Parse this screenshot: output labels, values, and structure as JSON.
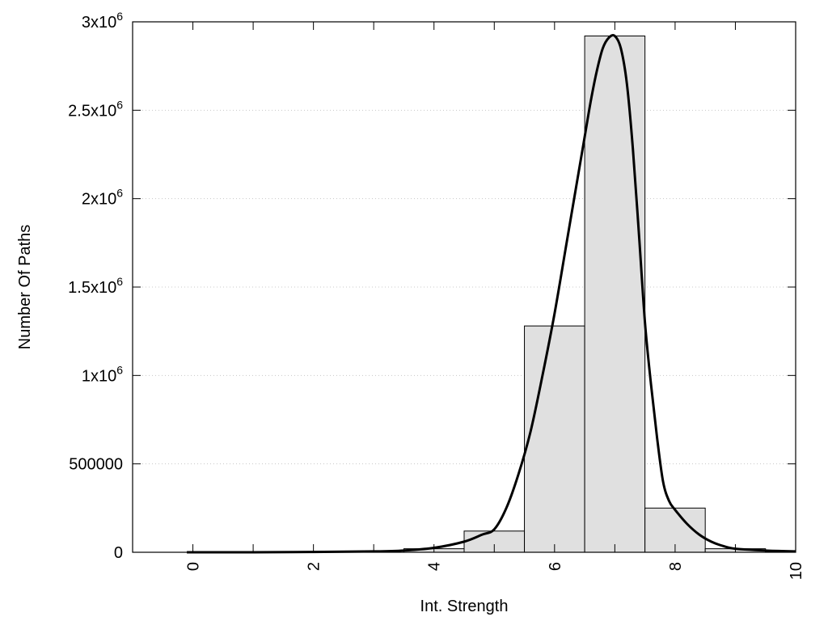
{
  "chart_data": {
    "type": "bar",
    "xlabel": "Int. Strength",
    "ylabel": "Number Of Paths",
    "xlim": [
      -1,
      10
    ],
    "ylim": [
      0,
      3000000
    ],
    "grid": true,
    "bar_color": "#e0e0e0",
    "x": [
      0,
      1,
      2,
      3,
      4,
      5,
      6,
      7,
      8,
      9,
      10
    ],
    "values": [
      0,
      0,
      0,
      0,
      20000,
      120000,
      1280000,
      2920000,
      250000,
      20000,
      5000
    ],
    "curve": {
      "x": [
        -0.1,
        1,
        2,
        3,
        3.5,
        4,
        4.5,
        4.8,
        5,
        5.2,
        5.4,
        5.6,
        5.8,
        6,
        6.2,
        6.4,
        6.5,
        6.6,
        6.7,
        6.8,
        6.9,
        7,
        7.1,
        7.2,
        7.3,
        7.4,
        7.5,
        7.6,
        7.7,
        7.8,
        7.9,
        8,
        8.2,
        8.4,
        8.6,
        8.8,
        9,
        9.5,
        10
      ],
      "y": [
        0,
        0,
        2000,
        5000,
        10000,
        25000,
        60000,
        100000,
        130000,
        250000,
        440000,
        680000,
        1000000,
        1350000,
        1750000,
        2150000,
        2350000,
        2550000,
        2720000,
        2850000,
        2910000,
        2920000,
        2850000,
        2650000,
        2280000,
        1800000,
        1300000,
        950000,
        650000,
        400000,
        290000,
        240000,
        160000,
        100000,
        60000,
        35000,
        20000,
        10000,
        5000
      ]
    },
    "y_ticks": [
      {
        "value": 0,
        "base": "0",
        "exp": ""
      },
      {
        "value": 500000,
        "base": "500000",
        "exp": ""
      },
      {
        "value": 1000000,
        "base": "1x10",
        "exp": "6"
      },
      {
        "value": 1500000,
        "base": "1.5x10",
        "exp": "6"
      },
      {
        "value": 2000000,
        "base": "2x10",
        "exp": "6"
      },
      {
        "value": 2500000,
        "base": "2.5x10",
        "exp": "6"
      },
      {
        "value": 3000000,
        "base": "3x10",
        "exp": "6"
      }
    ],
    "x_ticks": [
      {
        "value": 0,
        "label": "0"
      },
      {
        "value": 2,
        "label": "2"
      },
      {
        "value": 4,
        "label": "4"
      },
      {
        "value": 6,
        "label": "6"
      },
      {
        "value": 8,
        "label": "8"
      },
      {
        "value": 10,
        "label": "10"
      }
    ]
  }
}
